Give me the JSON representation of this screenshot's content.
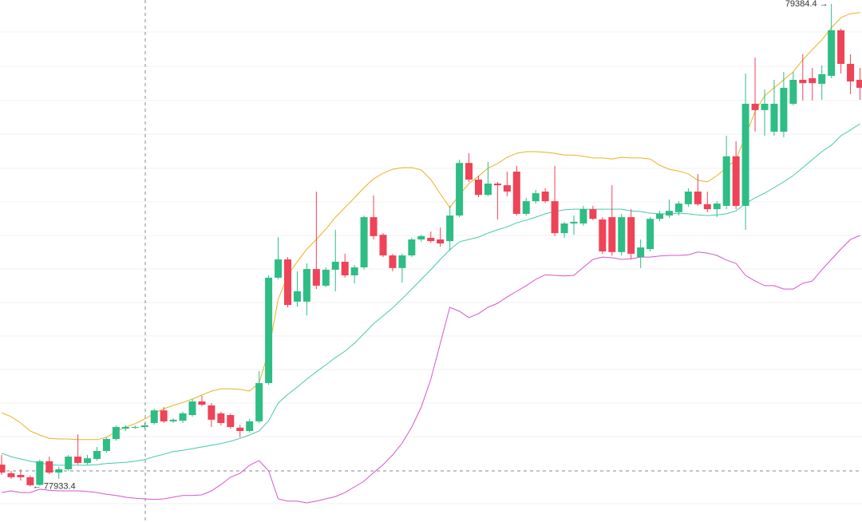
{
  "chart_data": {
    "type": "candlestick",
    "ylim": [
      77826.4,
      79396
    ],
    "up_color": "#2ebd85",
    "down_color": "#ef4358",
    "open": [
      77999,
      77973,
      77968,
      77961,
      77938,
      78009,
      77975,
      77985,
      78023,
      78004,
      78016,
      78040,
      78076,
      78107,
      78112,
      78112,
      78124,
      78162,
      78129,
      78131,
      78148,
      78189,
      78177,
      78153,
      78148,
      78110,
      78100,
      78129,
      78244,
      78561,
      78616,
      78489,
      78489,
      78587,
      78537,
      78585,
      78609,
      78568,
      78592,
      78743,
      78690,
      78628,
      78590,
      78628,
      78676,
      78681,
      78676,
      78671,
      78748,
      78906,
      78856,
      78810,
      78844,
      78839,
      78880,
      78753,
      78791,
      78820,
      78791,
      78695,
      78724,
      78724,
      78767,
      78736,
      78743,
      78638,
      78743,
      78623,
      78647,
      78738,
      78748,
      78758,
      78782,
      78820,
      78782,
      78767,
      78777,
      78926,
      78777,
      79084,
      79065,
      79000,
      79000,
      79084,
      79156,
      79161,
      79144,
      79168,
      79305,
      79204,
      79156
    ],
    "high": [
      78028,
      77980,
      77985,
      77966,
      78014,
      78023,
      77992,
      78028,
      78090,
      78028,
      78052,
      78081,
      78117,
      78117,
      78117,
      78124,
      78167,
      78172,
      78138,
      78158,
      78196,
      78206,
      78184,
      78158,
      78153,
      78119,
      78136,
      78280,
      78568,
      78683,
      78623,
      78580,
      78604,
      78820,
      78592,
      78705,
      78633,
      78599,
      78748,
      78808,
      78695,
      78633,
      78633,
      78681,
      78690,
      78700,
      78712,
      78777,
      78916,
      78935,
      78868,
      78909,
      78849,
      78880,
      78897,
      78801,
      78825,
      78830,
      78897,
      78729,
      78748,
      78777,
      78777,
      78743,
      78839,
      78753,
      78767,
      78676,
      78743,
      78762,
      78796,
      78791,
      78830,
      78873,
      78820,
      78791,
      78988,
      78971,
      79175,
      79223,
      79127,
      79156,
      79180,
      79180,
      79233,
      79192,
      79199,
      79384.4,
      79310,
      79233,
      79192
    ],
    "low": [
      77968,
      77956,
      77951,
      77933.4,
      77935,
      77970,
      77956,
      77980,
      77999,
      77999,
      78011,
      78035,
      78071,
      78100,
      78107,
      78107,
      78119,
      78124,
      78124,
      78124,
      78143,
      78174,
      78112,
      78117,
      78107,
      78081,
      78095,
      78124,
      78239,
      78556,
      78472,
      78474,
      78448,
      78527,
      78532,
      78520,
      78561,
      78544,
      78585,
      78676,
      78623,
      78580,
      78546,
      78623,
      78669,
      78666,
      78654,
      78642,
      78743,
      78849,
      78803,
      78806,
      78736,
      78806,
      78748,
      78748,
      78784,
      78786,
      78686,
      78681,
      78690,
      78717,
      78734,
      78633,
      78628,
      78628,
      78616,
      78590,
      78640,
      78731,
      78741,
      78748,
      78774,
      78777,
      78758,
      78743,
      78767,
      78767,
      78705,
      79000,
      78988,
      78988,
      78983,
      79079,
      79094,
      79094,
      79096,
      79161,
      79175,
      79113,
      79096
    ],
    "close": [
      77975,
      77961,
      77961,
      77937,
      78009,
      77975,
      77985,
      78023,
      78004,
      78018,
      78040,
      78076,
      78112,
      78112,
      78112,
      78117,
      78162,
      78129,
      78134,
      78153,
      78189,
      78179,
      78134,
      78124,
      78112,
      78100,
      78129,
      78244,
      78561,
      78616,
      78479,
      78520,
      78587,
      78537,
      78585,
      78609,
      78568,
      78592,
      78743,
      78686,
      78628,
      78590,
      78628,
      78676,
      78686,
      78671,
      78664,
      78748,
      78906,
      78856,
      78810,
      78844,
      78839,
      78820,
      78753,
      78791,
      78815,
      78791,
      78695,
      78724,
      78729,
      78767,
      78738,
      78640,
      78638,
      78743,
      78633,
      78652,
      78738,
      78753,
      78762,
      78784,
      78820,
      78782,
      78767,
      78784,
      78926,
      78777,
      79084,
      79065,
      79084,
      79084,
      79132,
      79156,
      79146,
      79146,
      79173,
      79305,
      79204,
      79151,
      79132
    ],
    "bands": [
      {
        "color": "#e8b220",
        "values": [
          78155,
          78143,
          78124,
          78100,
          78088,
          78078,
          78076,
          78076,
          78074,
          78074,
          78074,
          78081,
          78098,
          78112,
          78122,
          78136,
          78153,
          78167,
          78177,
          78186,
          78196,
          78208,
          78220,
          78227,
          78227,
          78225,
          78220,
          78244,
          78340,
          78496,
          78568,
          78609,
          78647,
          78676,
          78707,
          78743,
          78772,
          78801,
          78832,
          78858,
          78875,
          78887,
          78892,
          78892,
          78885,
          78856,
          78813,
          78772,
          78810,
          78844,
          78866,
          78890,
          78904,
          78923,
          78935,
          78940,
          78940,
          78938,
          78935,
          78930,
          78930,
          78926,
          78921,
          78921,
          78918,
          78923,
          78921,
          78921,
          78918,
          78899,
          78887,
          78882,
          78873,
          78854,
          78849,
          78868,
          78892,
          78916,
          78988,
          79060,
          79108,
          79132,
          79156,
          79180,
          79216,
          79247,
          79276,
          79312,
          79343,
          79355,
          79358
        ]
      },
      {
        "color": "#45c9ad",
        "values": [
          78033,
          78023,
          78016,
          78009,
          78004,
          77999,
          77997,
          77997,
          77997,
          77997,
          77999,
          78002,
          78004,
          78006,
          78009,
          78014,
          78023,
          78030,
          78038,
          78042,
          78047,
          78052,
          78057,
          78062,
          78069,
          78078,
          78088,
          78100,
          78131,
          78184,
          78210,
          78232,
          78256,
          78278,
          78299,
          78321,
          78340,
          78364,
          78393,
          78422,
          78446,
          78470,
          78498,
          78527,
          78556,
          78585,
          78616,
          78645,
          78669,
          78676,
          78683,
          78695,
          78705,
          78714,
          78726,
          78734,
          78743,
          78753,
          78760,
          78765,
          78767,
          78767,
          78767,
          78767,
          78767,
          78767,
          78762,
          78760,
          78755,
          78753,
          78753,
          78755,
          78753,
          78750,
          78748,
          78750,
          78753,
          78762,
          78784,
          78801,
          78815,
          78832,
          78849,
          78868,
          78892,
          78916,
          78940,
          78959,
          78988,
          79005,
          79024
        ]
      },
      {
        "color": "#d455cc",
        "values": [
          77915,
          77920,
          77915,
          77915,
          77925,
          77922,
          77920,
          77920,
          77920,
          77918,
          77915,
          77910,
          77906,
          77901,
          77898,
          77896,
          77894,
          77896,
          77901,
          77906,
          77906,
          77908,
          77920,
          77939,
          77961,
          77973,
          77997,
          78011,
          77980,
          77896,
          77889,
          77889,
          77884,
          77889,
          77896,
          77903,
          77915,
          77932,
          77949,
          77975,
          77999,
          78028,
          78064,
          78112,
          78172,
          78256,
          78364,
          78472,
          78460,
          78441,
          78453,
          78472,
          78484,
          78503,
          78520,
          78537,
          78556,
          78570,
          78568,
          78566,
          78568,
          78592,
          78616,
          78623,
          78621,
          78616,
          78618,
          78623,
          78623,
          78626,
          78628,
          78628,
          78630,
          78638,
          78635,
          78628,
          78614,
          78604,
          78568,
          78551,
          78537,
          78537,
          78527,
          78527,
          78544,
          78551,
          78585,
          78616,
          78647,
          78676,
          78688
        ]
      }
    ],
    "high_marker": {
      "value": 79384.4,
      "label": "79384.4 →"
    },
    "low_marker": {
      "value": 77933.4,
      "label": "← 77933.4"
    }
  }
}
